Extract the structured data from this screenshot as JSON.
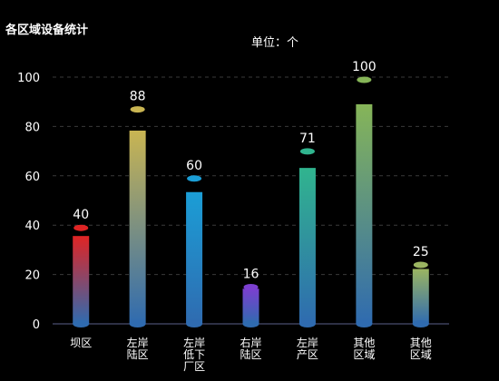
{
  "chart_data": {
    "type": "bar",
    "title": "各区域设备统计",
    "unit_label": "单位：个",
    "categories": [
      [
        "坝区"
      ],
      [
        "左岸",
        "陆区"
      ],
      [
        "左岸",
        "低下",
        "厂区"
      ],
      [
        "右岸",
        "陆区"
      ],
      [
        "左岸",
        "产区"
      ],
      [
        "其他",
        "区域"
      ],
      [
        "其他",
        "区域"
      ]
    ],
    "values": [
      40,
      88,
      60,
      16,
      71,
      100,
      25
    ],
    "yticks": [
      0,
      20,
      40,
      60,
      80,
      100
    ],
    "ylim": [
      0,
      100
    ],
    "grid": true,
    "colors": [
      "#e02424",
      "#c9b552",
      "#1b9ed6",
      "#7b3fd0",
      "#30b48e",
      "#86b558",
      "#9bb561"
    ],
    "base_color": "#2f6bb0"
  }
}
